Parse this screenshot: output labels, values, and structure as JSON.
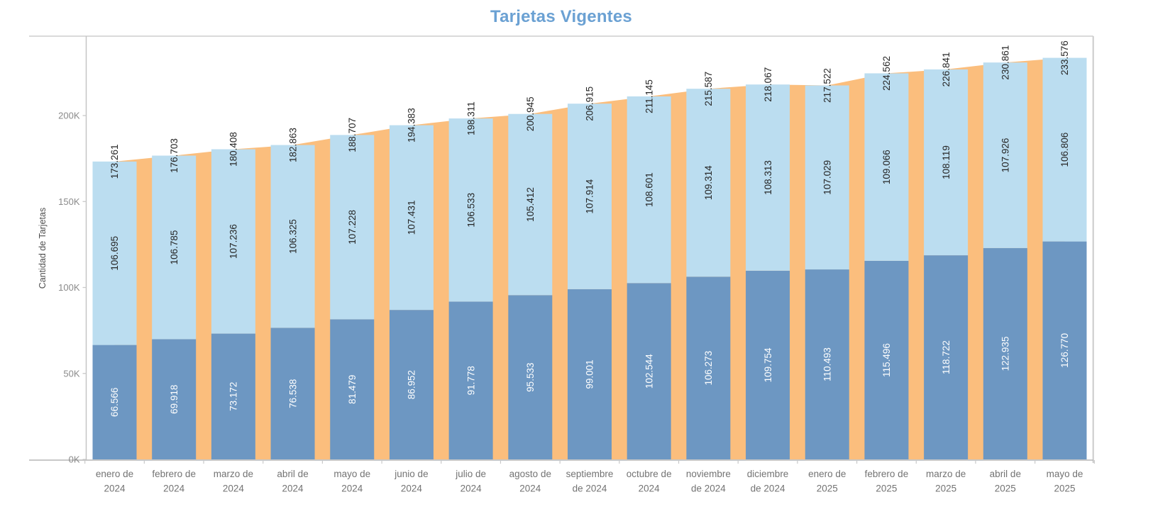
{
  "title": "Tarjetas Vigentes",
  "colors": {
    "title": "#6BA1D3",
    "bar_dark": "#6D97C2",
    "bar_light": "#BBDDF0",
    "area_orange": "#FBBE7D",
    "label_text": "#262626",
    "label_text_on_dark": "#FFFFFF",
    "y_tick_text": "#8A8A8A",
    "x_tick_text": "#737373",
    "top_border": "#DADADA",
    "right_border": "#CBCBCB",
    "y_axis_line": "#C2C2C2",
    "x_axis_line": "#B5B5B5",
    "tick_mark": "#C9C9C9"
  },
  "y_axis": {
    "label": "Cantidad de Tarjetas",
    "ticks": [
      "0K",
      "50K",
      "100K",
      "150K",
      "200K"
    ],
    "tick_values": [
      0,
      50000,
      100000,
      150000,
      200000
    ]
  },
  "chart_data": {
    "type": "bar",
    "subtype": "stacked-bars-with-total-area-behind",
    "title": "Tarjetas Vigentes",
    "xlabel": "",
    "ylabel": "Cantidad de Tarjetas",
    "ylim": [
      0,
      246000
    ],
    "grid": "off",
    "legend": "none",
    "categories": [
      "enero de 2024",
      "febrero de 2024",
      "marzo de 2024",
      "abril de 2024",
      "mayo de 2024",
      "junio de 2024",
      "julio de 2024",
      "agosto de 2024",
      "septiembre de 2024",
      "octubre de 2024",
      "noviembre de 2024",
      "diciembre de 2024",
      "enero de 2025",
      "febrero de 2025",
      "marzo de 2025",
      "abril de 2025",
      "mayo de 2025"
    ],
    "x_tick_lines": [
      [
        "enero de",
        "2024"
      ],
      [
        "febrero de",
        "2024"
      ],
      [
        "marzo de",
        "2024"
      ],
      [
        "abril de",
        "2024"
      ],
      [
        "mayo de",
        "2024"
      ],
      [
        "junio de",
        "2024"
      ],
      [
        "julio de",
        "2024"
      ],
      [
        "agosto de",
        "2024"
      ],
      [
        "septiembre",
        "de 2024"
      ],
      [
        "octubre de",
        "2024"
      ],
      [
        "noviembre",
        "de 2024"
      ],
      [
        "diciembre",
        "de 2024"
      ],
      [
        "enero de",
        "2025"
      ],
      [
        "febrero de",
        "2025"
      ],
      [
        "marzo de",
        "2025"
      ],
      [
        "abril de",
        "2025"
      ],
      [
        "mayo de",
        "2025"
      ]
    ],
    "series": [
      {
        "name": "segmento-inferior",
        "role": "stacked-bar-bottom",
        "color": "#6D97C2",
        "values": [
          66566,
          69918,
          73172,
          76538,
          81479,
          86952,
          91778,
          95533,
          99001,
          102544,
          106273,
          109754,
          110493,
          115496,
          118722,
          122935,
          126770
        ],
        "labels": [
          "66.566",
          "69.918",
          "73.172",
          "76.538",
          "81.479",
          "86.952",
          "91.778",
          "95.533",
          "99.001",
          "102.544",
          "106.273",
          "109.754",
          "110.493",
          "115.496",
          "118.722",
          "122.935",
          "126.770"
        ]
      },
      {
        "name": "segmento-superior",
        "role": "stacked-bar-top",
        "color": "#BBDDF0",
        "values": [
          106695,
          106785,
          107236,
          106325,
          107228,
          107431,
          106533,
          105412,
          107914,
          108601,
          109314,
          108313,
          107029,
          109066,
          108119,
          107926,
          106806
        ],
        "labels": [
          "106.695",
          "106.785",
          "107.236",
          "106.325",
          "107.228",
          "107.431",
          "106.533",
          "105.412",
          "107.914",
          "108.601",
          "109.314",
          "108.313",
          "107.029",
          "109.066",
          "108.119",
          "107.926",
          "106.806"
        ]
      },
      {
        "name": "total",
        "role": "area-behind-bars",
        "color": "#FBBE7D",
        "values": [
          173261,
          176703,
          180408,
          182863,
          188707,
          194383,
          198311,
          200945,
          206915,
          211145,
          215587,
          218067,
          217522,
          224562,
          226841,
          230861,
          233576
        ],
        "labels": [
          "173.261",
          "176.703",
          "180.408",
          "182.863",
          "188.707",
          "194.383",
          "198.311",
          "200.945",
          "206.915",
          "211.145",
          "215.587",
          "218.067",
          "217.522",
          "224.562",
          "226.841",
          "230.861",
          "233.576"
        ]
      }
    ]
  }
}
